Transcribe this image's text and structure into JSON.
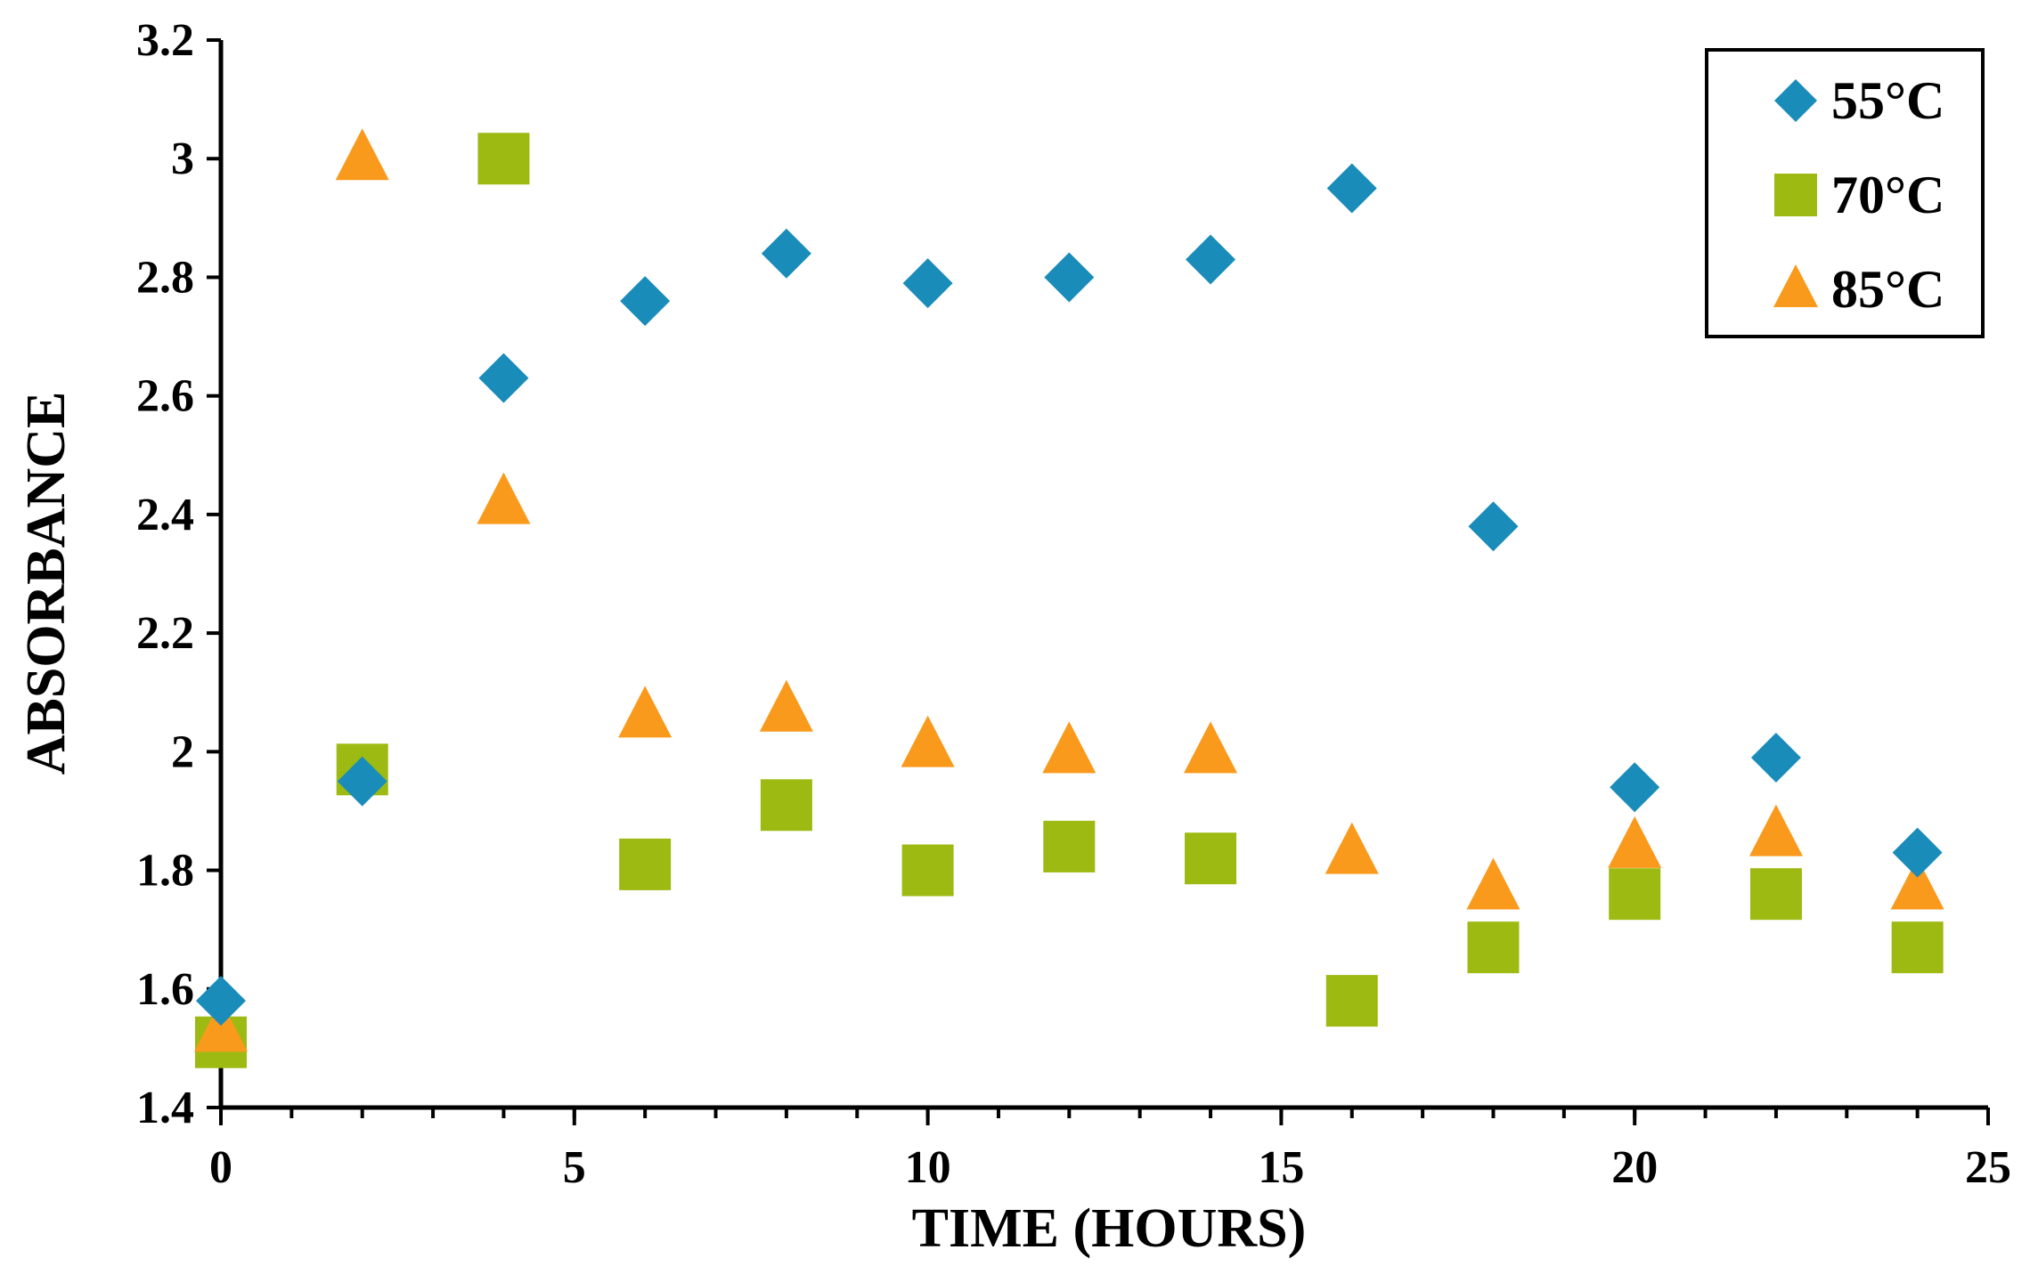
{
  "chart_data": {
    "type": "scatter",
    "title": "",
    "xlabel": "TIME (HOURS)",
    "ylabel": "ABSORBANCE",
    "xlim": [
      0,
      25
    ],
    "ylim": [
      1.4,
      3.2
    ],
    "xticks": [
      0,
      5,
      10,
      15,
      20,
      25
    ],
    "yticks": [
      1.4,
      1.6,
      1.8,
      2,
      2.2,
      2.4,
      2.6,
      2.8,
      3,
      3.2
    ],
    "x_minor_step": 1,
    "grid": false,
    "legend_position": "top-right",
    "series": [
      {
        "name": "55°C",
        "marker": "diamond",
        "color": "#1a8cba",
        "x": [
          0,
          2,
          4,
          6,
          8,
          10,
          12,
          14,
          16,
          18,
          20,
          22,
          24
        ],
        "y": [
          1.58,
          1.95,
          2.63,
          2.76,
          2.84,
          2.79,
          2.8,
          2.83,
          2.95,
          2.38,
          1.94,
          1.99,
          1.83
        ]
      },
      {
        "name": "70°C",
        "marker": "square",
        "color": "#9dba12",
        "x": [
          0,
          2,
          4,
          6,
          8,
          10,
          12,
          14,
          16,
          18,
          20,
          22,
          24
        ],
        "y": [
          1.51,
          1.97,
          3.0,
          1.81,
          1.91,
          1.8,
          1.84,
          1.82,
          1.58,
          1.67,
          1.76,
          1.76,
          1.67
        ]
      },
      {
        "name": "85°C",
        "marker": "triangle",
        "color": "#f99a1c",
        "x": [
          0,
          2,
          4,
          6,
          8,
          10,
          12,
          14,
          16,
          18,
          20,
          22,
          24
        ],
        "y": [
          1.53,
          3.0,
          2.42,
          2.06,
          2.07,
          2.01,
          2.0,
          2.0,
          1.83,
          1.77,
          1.84,
          1.86,
          1.77
        ]
      }
    ]
  }
}
